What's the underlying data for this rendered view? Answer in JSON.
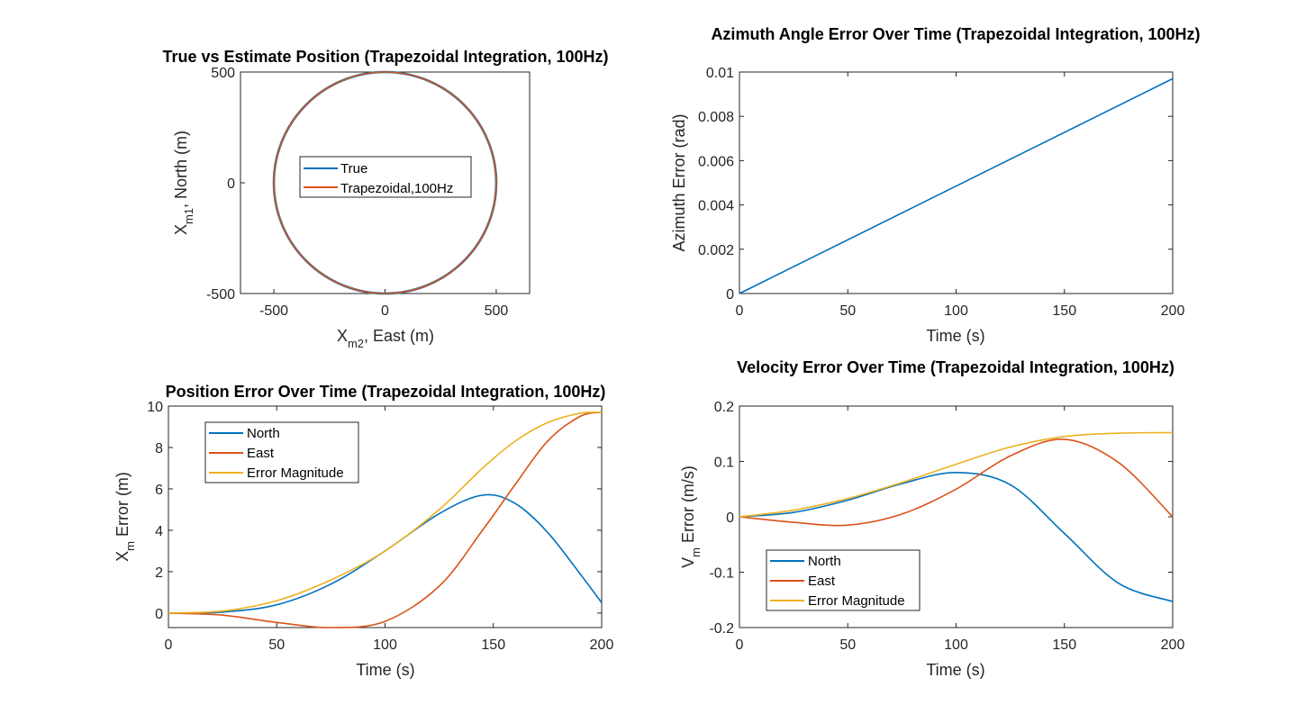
{
  "colors": {
    "blue": "#0072BD",
    "orange": "#D95319",
    "yellow": "#EDB120",
    "axis": "#262626"
  },
  "chart_data": [
    {
      "id": "pos",
      "type": "line",
      "title": "True vs Estimate Position (Trapezoidal Integration, 100Hz)",
      "xlabel": {
        "main": "X",
        "sub": "m2",
        "rest": ", East (m)"
      },
      "ylabel": {
        "main": "X",
        "sub": "m1",
        "rest": ", North (m)"
      },
      "xlim": [
        -650,
        650
      ],
      "ylim": [
        -500,
        500
      ],
      "xticks": [
        -500,
        0,
        500
      ],
      "xtick_labels": [
        "-500",
        "0",
        "500"
      ],
      "yticks": [
        -500,
        0,
        500
      ],
      "ytick_labels": [
        "-500",
        "0",
        "500"
      ],
      "grid": false,
      "legend": {
        "placement": "center",
        "entries": [
          "True",
          "Trapezoidal,100Hz"
        ]
      },
      "series": [
        {
          "name": "True",
          "color": "blue",
          "curve": "circle",
          "radius": 500
        },
        {
          "name": "Trapezoidal,100Hz",
          "color": "orange",
          "curve": "circle",
          "radius": 500
        }
      ]
    },
    {
      "id": "az",
      "type": "line",
      "title": "Azimuth Angle Error Over Time (Trapezoidal Integration, 100Hz)",
      "xlabel": {
        "main": "Time (s)"
      },
      "ylabel": {
        "main": "Azimuth Error (rad)"
      },
      "xlim": [
        0,
        200
      ],
      "ylim": [
        0,
        0.01
      ],
      "xticks": [
        0,
        50,
        100,
        150,
        200
      ],
      "xtick_labels": [
        "0",
        "50",
        "100",
        "150",
        "200"
      ],
      "yticks": [
        0,
        0.002,
        0.004,
        0.006,
        0.008,
        0.01
      ],
      "ytick_labels": [
        "0",
        "0.002",
        "0.004",
        "0.006",
        "0.008",
        "0.01"
      ],
      "grid": false,
      "series": [
        {
          "color": "blue",
          "x": [
            0,
            200
          ],
          "y": [
            0,
            0.0097
          ]
        }
      ]
    },
    {
      "id": "perr",
      "type": "line",
      "title": "Position Error Over Time (Trapezoidal Integration, 100Hz)",
      "xlabel": {
        "main": "Time (s)"
      },
      "ylabel": {
        "main": "X",
        "sub": "m",
        "rest": " Error (m)"
      },
      "xlim": [
        0,
        200
      ],
      "ylim": [
        -0.7,
        10
      ],
      "xticks": [
        0,
        50,
        100,
        150,
        200
      ],
      "xtick_labels": [
        "0",
        "50",
        "100",
        "150",
        "200"
      ],
      "yticks": [
        0,
        2,
        4,
        6,
        8,
        10
      ],
      "ytick_labels": [
        "0",
        "2",
        "4",
        "6",
        "8",
        "10"
      ],
      "grid": false,
      "legend": {
        "placement": "top-left",
        "entries": [
          "North",
          "East",
          "Error Magnitude"
        ]
      },
      "x": [
        0,
        25,
        50,
        75,
        100,
        125,
        145,
        160,
        175,
        190,
        200
      ],
      "series": [
        {
          "name": "North",
          "color": "blue",
          "values": [
            0,
            0.05,
            0.4,
            1.4,
            3.0,
            4.8,
            5.7,
            5.3,
            3.9,
            1.9,
            0.5
          ]
        },
        {
          "name": "East",
          "color": "orange",
          "values": [
            0,
            -0.1,
            -0.45,
            -0.7,
            -0.4,
            1.3,
            4.0,
            6.2,
            8.3,
            9.5,
            9.7
          ]
        },
        {
          "name": "Error Magnitude",
          "color": "yellow",
          "values": [
            0,
            0.1,
            0.6,
            1.6,
            3.0,
            5.0,
            7.0,
            8.3,
            9.2,
            9.65,
            9.7
          ]
        }
      ]
    },
    {
      "id": "verr",
      "type": "line",
      "title": "Velocity Error Over Time (Trapezoidal Integration, 100Hz)",
      "xlabel": {
        "main": "Time (s)"
      },
      "ylabel": {
        "main": "V",
        "sub": "m",
        "rest": " Error (m/s)"
      },
      "xlim": [
        0,
        200
      ],
      "ylim": [
        -0.2,
        0.2
      ],
      "xticks": [
        0,
        50,
        100,
        150,
        200
      ],
      "xtick_labels": [
        "0",
        "50",
        "100",
        "150",
        "200"
      ],
      "yticks": [
        -0.2,
        -0.1,
        0,
        0.1,
        0.2
      ],
      "ytick_labels": [
        "-0.2",
        "-0.1",
        "0",
        "0.1",
        "0.2"
      ],
      "grid": false,
      "legend": {
        "placement": "bottom-left",
        "entries": [
          "North",
          "East",
          "Error Magnitude"
        ]
      },
      "x": [
        0,
        25,
        50,
        75,
        100,
        125,
        150,
        175,
        200
      ],
      "series": [
        {
          "name": "North",
          "color": "blue",
          "values": [
            0,
            0.008,
            0.03,
            0.06,
            0.08,
            0.058,
            -0.03,
            -0.12,
            -0.153
          ]
        },
        {
          "name": "East",
          "color": "orange",
          "values": [
            0,
            -0.01,
            -0.015,
            0.005,
            0.05,
            0.11,
            0.14,
            0.098,
            0
          ]
        },
        {
          "name": "Error Magnitude",
          "color": "yellow",
          "values": [
            0,
            0.012,
            0.033,
            0.062,
            0.095,
            0.126,
            0.145,
            0.151,
            0.152
          ]
        }
      ]
    }
  ]
}
